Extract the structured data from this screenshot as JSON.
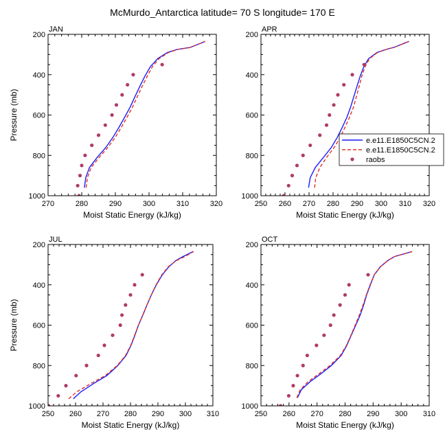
{
  "figure": {
    "title": "McMurdo_Antarctica  latitude= 70 S longitude= 170 E"
  },
  "legend": {
    "entries": [
      {
        "label": "e.e11.E1850C5CN.2",
        "color": "#1a1aff",
        "style": "solid"
      },
      {
        "label": "e.e11.E1850C5CN.2",
        "color": "#e0301e",
        "style": "dashed"
      },
      {
        "label": "raobs",
        "color": "#b03a6a",
        "style": "marker"
      }
    ]
  },
  "chart_data": [
    {
      "type": "line",
      "panel": "JAN",
      "xlabel": "Moist Static Energy (kJ/kg)",
      "ylabel": "Pressure (mb)",
      "xlim": [
        270,
        320
      ],
      "ylim": [
        1000,
        200
      ],
      "xticks": [
        270,
        280,
        290,
        300,
        310,
        320
      ],
      "yticks": [
        200,
        400,
        600,
        800,
        1000
      ],
      "series": [
        {
          "style": "solid",
          "color": "#1a1aff",
          "points": [
            [
              280.8,
              960
            ],
            [
              281.2,
              910
            ],
            [
              282.3,
              860
            ],
            [
              284.6,
              810
            ],
            [
              287.2,
              760
            ],
            [
              289.3,
              710
            ],
            [
              291.1,
              660
            ],
            [
              292.8,
              610
            ],
            [
              294.4,
              560
            ],
            [
              295.8,
              510
            ],
            [
              297.2,
              460
            ],
            [
              298.7,
              410
            ],
            [
              300.4,
              360
            ],
            [
              302.6,
              320
            ],
            [
              305.5,
              290
            ],
            [
              308.3,
              275
            ],
            [
              312.2,
              265
            ],
            [
              316.7,
              235
            ]
          ]
        },
        {
          "style": "dashed",
          "color": "#e0301e",
          "points": [
            [
              281.3,
              960
            ],
            [
              281.7,
              910
            ],
            [
              282.8,
              860
            ],
            [
              285.2,
              810
            ],
            [
              287.8,
              760
            ],
            [
              290.0,
              710
            ],
            [
              291.8,
              660
            ],
            [
              293.5,
              610
            ],
            [
              295.1,
              560
            ],
            [
              296.5,
              510
            ],
            [
              297.9,
              460
            ],
            [
              299.4,
              410
            ],
            [
              301.0,
              360
            ],
            [
              303.0,
              320
            ],
            [
              305.8,
              290
            ],
            [
              308.5,
              275
            ],
            [
              312.3,
              265
            ],
            [
              316.7,
              235
            ]
          ]
        },
        {
          "style": "marker",
          "color": "#b03a6a",
          "points": [
            [
              279.2,
              1000
            ],
            [
              278.8,
              950
            ],
            [
              279.5,
              900
            ],
            [
              280.0,
              850
            ],
            [
              281.0,
              800
            ],
            [
              283.0,
              750
            ],
            [
              285.0,
              700
            ],
            [
              287.0,
              650
            ],
            [
              289.0,
              600
            ],
            [
              290.3,
              550
            ],
            [
              292.0,
              500
            ],
            [
              293.6,
              450
            ],
            [
              295.3,
              400
            ],
            [
              303.9,
              350
            ]
          ]
        }
      ]
    },
    {
      "type": "line",
      "panel": "APR",
      "xlabel": "Moist Static Energy (kJ/kg)",
      "ylabel": "",
      "xlim": [
        250,
        320
      ],
      "ylim": [
        1000,
        200
      ],
      "xticks": [
        250,
        260,
        270,
        280,
        290,
        300,
        310,
        320
      ],
      "yticks": [
        200,
        400,
        600,
        800,
        1000
      ],
      "series": [
        {
          "style": "solid",
          "color": "#1a1aff",
          "points": [
            [
              269.8,
              960
            ],
            [
              270.5,
              910
            ],
            [
              272.6,
              860
            ],
            [
              276.0,
              810
            ],
            [
              279.3,
              760
            ],
            [
              281.8,
              710
            ],
            [
              283.9,
              660
            ],
            [
              285.8,
              610
            ],
            [
              287.3,
              560
            ],
            [
              288.6,
              510
            ],
            [
              289.9,
              460
            ],
            [
              291.2,
              410
            ],
            [
              292.8,
              360
            ],
            [
              294.8,
              320
            ],
            [
              298.3,
              290
            ],
            [
              302.0,
              275
            ],
            [
              305.2,
              265
            ],
            [
              311.6,
              235
            ]
          ]
        },
        {
          "style": "dashed",
          "color": "#e0301e",
          "points": [
            [
              272.3,
              960
            ],
            [
              272.8,
              910
            ],
            [
              274.5,
              860
            ],
            [
              277.3,
              810
            ],
            [
              280.5,
              760
            ],
            [
              283.0,
              710
            ],
            [
              285.0,
              660
            ],
            [
              286.9,
              610
            ],
            [
              288.5,
              560
            ],
            [
              289.7,
              510
            ],
            [
              290.8,
              460
            ],
            [
              291.9,
              410
            ],
            [
              293.3,
              360
            ],
            [
              295.2,
              320
            ],
            [
              298.5,
              290
            ],
            [
              302.1,
              275
            ],
            [
              305.3,
              265
            ],
            [
              311.6,
              235
            ]
          ]
        },
        {
          "style": "marker",
          "color": "#b03a6a",
          "points": [
            [
              259.5,
              1000
            ],
            [
              261.5,
              950
            ],
            [
              263.0,
              900
            ],
            [
              265.0,
              850
            ],
            [
              267.5,
              800
            ],
            [
              270.5,
              750
            ],
            [
              274.5,
              700
            ],
            [
              277.3,
              650
            ],
            [
              278.5,
              600
            ],
            [
              280.3,
              550
            ],
            [
              282.0,
              500
            ],
            [
              284.5,
              450
            ],
            [
              288.0,
              400
            ],
            [
              292.9,
              350
            ]
          ]
        }
      ]
    },
    {
      "type": "line",
      "panel": "JUL",
      "xlabel": "Moist Static Energy (kJ/kg)",
      "ylabel": "Pressure (mb)",
      "xlim": [
        250,
        310
      ],
      "ylim": [
        1000,
        200
      ],
      "xticks": [
        250,
        260,
        270,
        280,
        290,
        300,
        310
      ],
      "yticks": [
        200,
        400,
        600,
        800,
        1000
      ],
      "series": [
        {
          "style": "solid",
          "color": "#1a1aff",
          "points": [
            [
              259.2,
              965
            ],
            [
              262.0,
              930
            ],
            [
              266.5,
              890
            ],
            [
              271.4,
              850
            ],
            [
              275.4,
              800
            ],
            [
              278.4,
              750
            ],
            [
              280.2,
              700
            ],
            [
              281.6,
              650
            ],
            [
              282.9,
              600
            ],
            [
              284.5,
              550
            ],
            [
              286.0,
              500
            ],
            [
              287.6,
              450
            ],
            [
              289.4,
              400
            ],
            [
              291.6,
              350
            ],
            [
              294.0,
              310
            ],
            [
              296.5,
              280
            ],
            [
              299.1,
              260
            ],
            [
              302.8,
              235
            ]
          ]
        },
        {
          "style": "dashed",
          "color": "#e0301e",
          "points": [
            [
              257.5,
              965
            ],
            [
              260.5,
              930
            ],
            [
              265.5,
              890
            ],
            [
              270.8,
              850
            ],
            [
              275.2,
              800
            ],
            [
              278.2,
              750
            ],
            [
              280.1,
              700
            ],
            [
              281.5,
              650
            ],
            [
              282.9,
              600
            ],
            [
              284.5,
              550
            ],
            [
              286.0,
              500
            ],
            [
              287.6,
              450
            ],
            [
              289.3,
              400
            ],
            [
              291.4,
              350
            ],
            [
              293.8,
              310
            ],
            [
              296.7,
              280
            ],
            [
              299.8,
              260
            ],
            [
              303.0,
              235
            ]
          ]
        },
        {
          "style": "marker",
          "color": "#b03a6a",
          "points": [
            [
              250.2,
              1000
            ],
            [
              253.7,
              950
            ],
            [
              256.5,
              900
            ],
            [
              260.2,
              850
            ],
            [
              264.0,
              800
            ],
            [
              268.3,
              750
            ],
            [
              270.5,
              700
            ],
            [
              273.5,
              650
            ],
            [
              276.3,
              600
            ],
            [
              276.9,
              550
            ],
            [
              278.2,
              500
            ],
            [
              280.0,
              450
            ],
            [
              281.5,
              400
            ],
            [
              284.3,
              350
            ]
          ]
        }
      ]
    },
    {
      "type": "line",
      "panel": "OCT",
      "xlabel": "Moist Static Energy (kJ/kg)",
      "ylabel": "",
      "xlim": [
        250,
        310
      ],
      "ylim": [
        1000,
        200
      ],
      "xticks": [
        250,
        260,
        270,
        280,
        290,
        300,
        310
      ],
      "yticks": [
        200,
        400,
        600,
        800,
        1000
      ],
      "series": [
        {
          "style": "solid",
          "color": "#1a1aff",
          "points": [
            [
              263.0,
              960
            ],
            [
              264.4,
              920
            ],
            [
              267.5,
              880
            ],
            [
              271.5,
              840
            ],
            [
              275.1,
              800
            ],
            [
              278.6,
              750
            ],
            [
              280.6,
              700
            ],
            [
              282.2,
              650
            ],
            [
              283.8,
              600
            ],
            [
              285.4,
              550
            ],
            [
              286.6,
              500
            ],
            [
              287.7,
              450
            ],
            [
              289.0,
              400
            ],
            [
              290.4,
              350
            ],
            [
              292.6,
              310
            ],
            [
              295.2,
              280
            ],
            [
              297.6,
              260
            ],
            [
              303.9,
              235
            ]
          ]
        },
        {
          "style": "dashed",
          "color": "#e0301e",
          "points": [
            [
              262.8,
              960
            ],
            [
              264.0,
              920
            ],
            [
              266.8,
              880
            ],
            [
              270.8,
              840
            ],
            [
              274.6,
              800
            ],
            [
              278.3,
              750
            ],
            [
              280.5,
              700
            ],
            [
              282.1,
              650
            ],
            [
              283.6,
              600
            ],
            [
              285.1,
              550
            ],
            [
              286.4,
              500
            ],
            [
              287.6,
              450
            ],
            [
              288.9,
              400
            ],
            [
              290.4,
              350
            ],
            [
              292.6,
              310
            ],
            [
              295.2,
              280
            ],
            [
              297.6,
              260
            ],
            [
              303.9,
              235
            ]
          ]
        },
        {
          "style": "marker",
          "color": "#b03a6a",
          "points": [
            [
              257.0,
              1000
            ],
            [
              259.9,
              950
            ],
            [
              261.5,
              900
            ],
            [
              263.0,
              850
            ],
            [
              265.0,
              800
            ],
            [
              266.5,
              750
            ],
            [
              269.8,
              700
            ],
            [
              272.5,
              650
            ],
            [
              274.8,
              600
            ],
            [
              276.0,
              550
            ],
            [
              278.2,
              500
            ],
            [
              280.0,
              450
            ],
            [
              281.4,
              400
            ],
            [
              288.2,
              350
            ]
          ]
        }
      ]
    }
  ]
}
